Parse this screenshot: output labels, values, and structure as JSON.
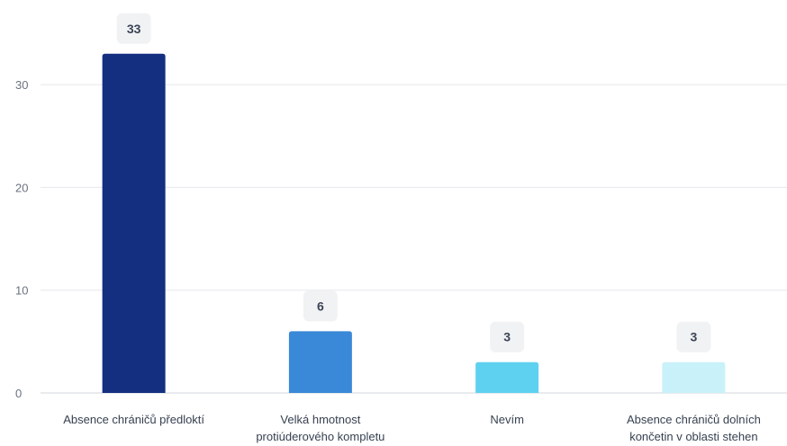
{
  "chart_data": {
    "type": "bar",
    "title": "",
    "xlabel": "",
    "ylabel": "",
    "categories": [
      [
        "Absence chráničů předloktí"
      ],
      [
        "Velká hmotnost",
        "protiúderového kompletu"
      ],
      [
        "Nevím"
      ],
      [
        "Absence chráničů dolních",
        "končetin v oblasti stehen"
      ]
    ],
    "values": [
      33,
      6,
      3,
      3
    ],
    "data_labels": [
      "33",
      "6",
      "3",
      "3"
    ],
    "colors": [
      "#142f80",
      "#3a88d8",
      "#5fd1f0",
      "#c9f1fa"
    ],
    "ylim": [
      0,
      30
    ],
    "yticks": [
      0,
      10,
      20,
      30
    ],
    "ytick_labels": [
      "0",
      "10",
      "20",
      "30"
    ],
    "grid": true,
    "legend": "none"
  }
}
